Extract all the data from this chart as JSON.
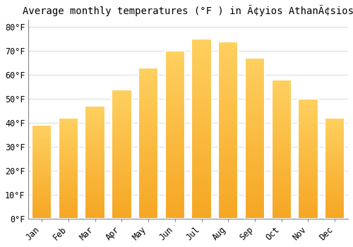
{
  "title": "Average monthly temperatures (°F ) in Ã¢yios AthanÃ¢sios",
  "months": [
    "Jan",
    "Feb",
    "Mar",
    "Apr",
    "May",
    "Jun",
    "Jul",
    "Aug",
    "Sep",
    "Oct",
    "Nov",
    "Dec"
  ],
  "values": [
    39,
    42,
    47,
    54,
    63,
    70,
    75,
    74,
    67,
    58,
    50,
    42
  ],
  "bar_color_bottom": "#F5A623",
  "bar_color_top": "#FFD060",
  "bar_edge_color": "#FFFFFF",
  "background_color": "#FFFFFF",
  "grid_color": "#DDDDDD",
  "yticks": [
    0,
    10,
    20,
    30,
    40,
    50,
    60,
    70,
    80
  ],
  "ylim": [
    0,
    83
  ],
  "title_fontsize": 10,
  "tick_fontsize": 8.5,
  "font_family": "monospace"
}
